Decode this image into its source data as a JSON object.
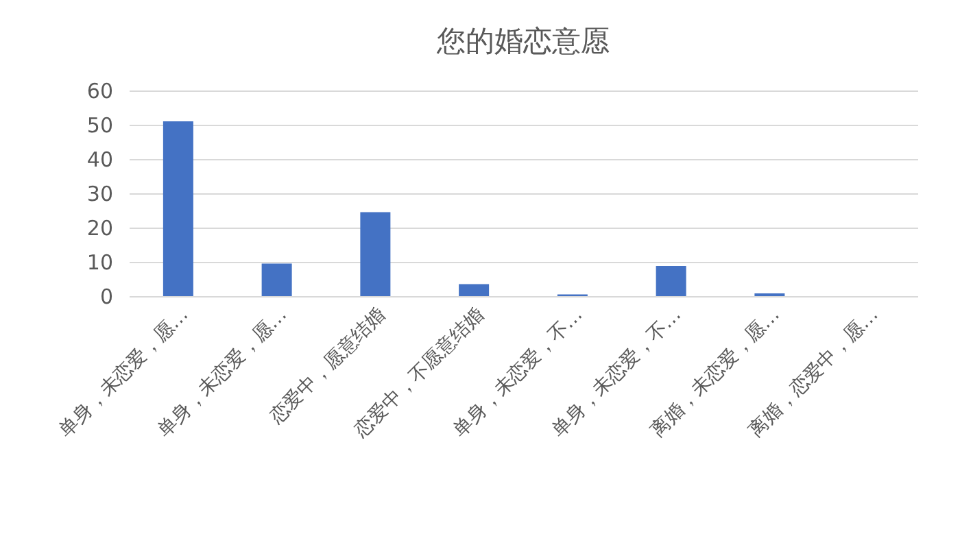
{
  "chart_data": {
    "type": "bar",
    "title": "您的婚恋意愿",
    "categories": [
      "单身，未恋爱，愿…",
      "单身，未恋爱，愿…",
      "恋爱中，愿意结婚",
      "恋爱中，不愿意结婚",
      "单身，未恋爱，不…",
      "单身，未恋爱，不…",
      "离婚，未恋爱，愿…",
      "离婚，恋爱中，愿…"
    ],
    "values": [
      51,
      9.5,
      24.5,
      3.5,
      0.5,
      8.8,
      0.8,
      0
    ],
    "color": "#4472c4",
    "ylim": [
      0,
      60
    ],
    "yticks": [
      0,
      10,
      20,
      30,
      40,
      50,
      60
    ],
    "grid": "y"
  }
}
